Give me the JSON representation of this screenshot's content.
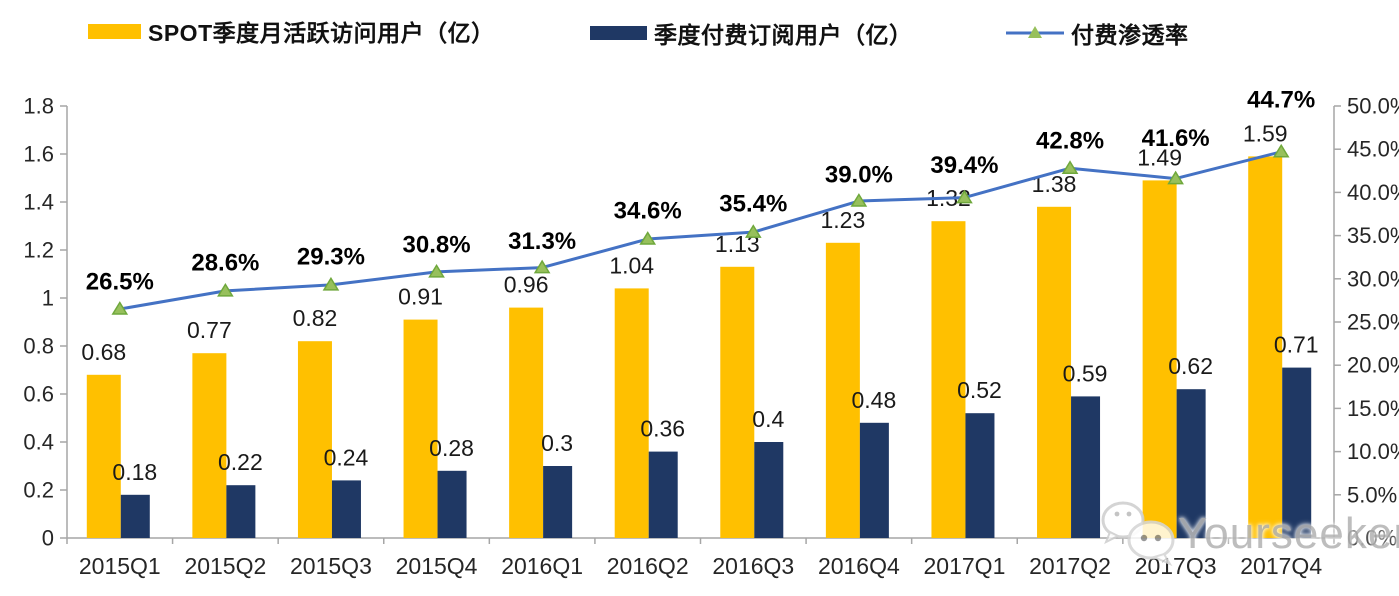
{
  "legend": {
    "items": [
      {
        "label": "SPOT季度月活跃访问用户（亿）",
        "swatch": "bar",
        "color": "#FFC000"
      },
      {
        "label": "季度付费订阅用户（亿）",
        "swatch": "bar",
        "color": "#1F3864"
      },
      {
        "label": "付费渗透率",
        "swatch": "line-triangle",
        "color": "#4472C4",
        "marker_color": "#97C05C"
      }
    ]
  },
  "watermark": {
    "text": "Yourseeker",
    "icon": "wechat-icon"
  },
  "colors": {
    "mau_bar": "#FFC000",
    "subs_bar": "#1F3864",
    "line": "#4472C4",
    "marker_fill": "#97C05C",
    "marker_stroke": "#6FA83C",
    "axis": "#a6a6a6",
    "tick_text": "#262626",
    "value_text": "#1a1a1a",
    "pct_text": "#000000"
  },
  "chart_data": {
    "type": "bar",
    "subtype": "combo-clustered-bar-with-line",
    "title": "",
    "categories": [
      "2015Q1",
      "2015Q2",
      "2015Q3",
      "2015Q4",
      "2016Q1",
      "2016Q2",
      "2016Q3",
      "2016Q4",
      "2017Q1",
      "2017Q2",
      "2017Q3",
      "2017Q4"
    ],
    "series": [
      {
        "name": "SPOT季度月活跃访问用户（亿）",
        "type": "bar",
        "axis": "left",
        "color": "#FFC000",
        "values": [
          0.68,
          0.77,
          0.82,
          0.91,
          0.96,
          1.04,
          1.13,
          1.23,
          1.32,
          1.38,
          1.49,
          1.59
        ],
        "labels": [
          "0.68",
          "0.77",
          "0.82",
          "0.91",
          "0.96",
          "1.04",
          "1.13",
          "1.23",
          "1.32",
          "1.38",
          "1.49",
          "1.59"
        ]
      },
      {
        "name": "季度付费订阅用户（亿）",
        "type": "bar",
        "axis": "left",
        "color": "#1F3864",
        "values": [
          0.18,
          0.22,
          0.24,
          0.28,
          0.3,
          0.36,
          0.4,
          0.48,
          0.52,
          0.59,
          0.62,
          0.71
        ],
        "labels": [
          "0.18",
          "0.22",
          "0.24",
          "0.28",
          "0.3",
          "0.36",
          "0.4",
          "0.48",
          "0.52",
          "0.59",
          "0.62",
          "0.71"
        ]
      },
      {
        "name": "付费渗透率",
        "type": "line",
        "axis": "right",
        "color": "#4472C4",
        "marker": "triangle-up",
        "values": [
          26.5,
          28.6,
          29.3,
          30.8,
          31.3,
          34.6,
          35.4,
          39.0,
          39.4,
          42.8,
          41.6,
          44.7
        ],
        "labels": [
          "26.5%",
          "28.6%",
          "29.3%",
          "30.8%",
          "31.3%",
          "34.6%",
          "35.4%",
          "39.0%",
          "39.4%",
          "42.8%",
          "41.6%",
          "44.7%"
        ]
      }
    ],
    "left_axis": {
      "min": 0,
      "max": 1.8,
      "step": 0.2,
      "ticks": [
        "0",
        "0.2",
        "0.4",
        "0.6",
        "0.8",
        "1",
        "1.2",
        "1.4",
        "1.6",
        "1.8"
      ]
    },
    "right_axis": {
      "min": 0,
      "max": 50,
      "step": 5,
      "ticks": [
        "0.0%",
        "5.0%",
        "10.0%",
        "15.0%",
        "20.0%",
        "25.0%",
        "30.0%",
        "35.0%",
        "40.0%",
        "45.0%",
        "50.0%"
      ]
    },
    "grid": false,
    "legend_position": "top"
  }
}
